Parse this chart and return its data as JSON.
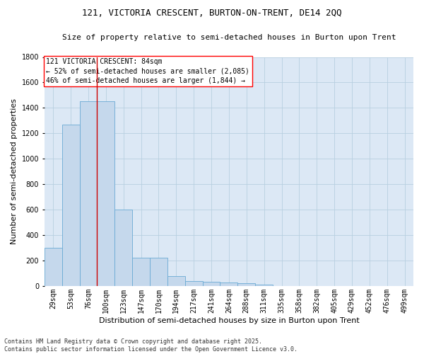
{
  "title": "121, VICTORIA CRESCENT, BURTON-ON-TRENT, DE14 2QQ",
  "subtitle": "Size of property relative to semi-detached houses in Burton upon Trent",
  "xlabel": "Distribution of semi-detached houses by size in Burton upon Trent",
  "ylabel": "Number of semi-detached properties",
  "categories": [
    "29sqm",
    "53sqm",
    "76sqm",
    "100sqm",
    "123sqm",
    "147sqm",
    "170sqm",
    "194sqm",
    "217sqm",
    "241sqm",
    "264sqm",
    "288sqm",
    "311sqm",
    "335sqm",
    "358sqm",
    "382sqm",
    "405sqm",
    "429sqm",
    "452sqm",
    "476sqm",
    "499sqm"
  ],
  "values": [
    300,
    1270,
    1450,
    1450,
    600,
    220,
    220,
    75,
    40,
    35,
    30,
    20,
    10,
    0,
    0,
    0,
    0,
    0,
    0,
    0,
    0
  ],
  "bar_color": "#c5d8ec",
  "bar_edge_color": "#6aaad4",
  "plot_bg_color": "#dce8f5",
  "fig_bg_color": "#ffffff",
  "grid_color": "#b8cfe0",
  "red_line_color": "#cc0000",
  "property_line_x": 2.5,
  "annotation_text_line1": "121 VICTORIA CRESCENT: 84sqm",
  "annotation_text_line2": "← 52% of semi-detached houses are smaller (2,085)",
  "annotation_text_line3": "46% of semi-detached houses are larger (1,844) →",
  "footer_line1": "Contains HM Land Registry data © Crown copyright and database right 2025.",
  "footer_line2": "Contains public sector information licensed under the Open Government Licence v3.0.",
  "ylim": [
    0,
    1800
  ],
  "title_fontsize": 9,
  "subtitle_fontsize": 8,
  "ylabel_fontsize": 8,
  "xlabel_fontsize": 8,
  "tick_fontsize": 7,
  "footer_fontsize": 6,
  "annotation_fontsize": 7
}
